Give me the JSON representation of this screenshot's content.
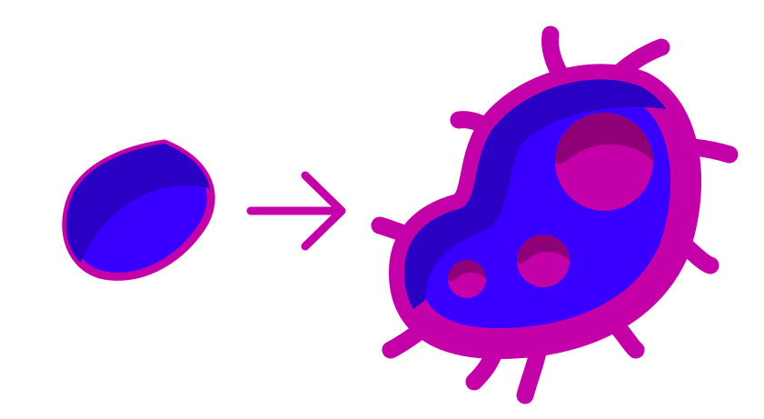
{
  "colors": {
    "outline": "#c400a8",
    "body": "#3a00ff",
    "body_shadow": "#2a00c4",
    "vacuole": "#c400a8",
    "vacuole_shadow": "#8f0078",
    "arrow": "#c400a8",
    "background": "#ffffff"
  },
  "icons": {
    "spore": "spore-icon",
    "arrow": "arrow-right-icon",
    "bacterium": "bacterium-icon"
  }
}
